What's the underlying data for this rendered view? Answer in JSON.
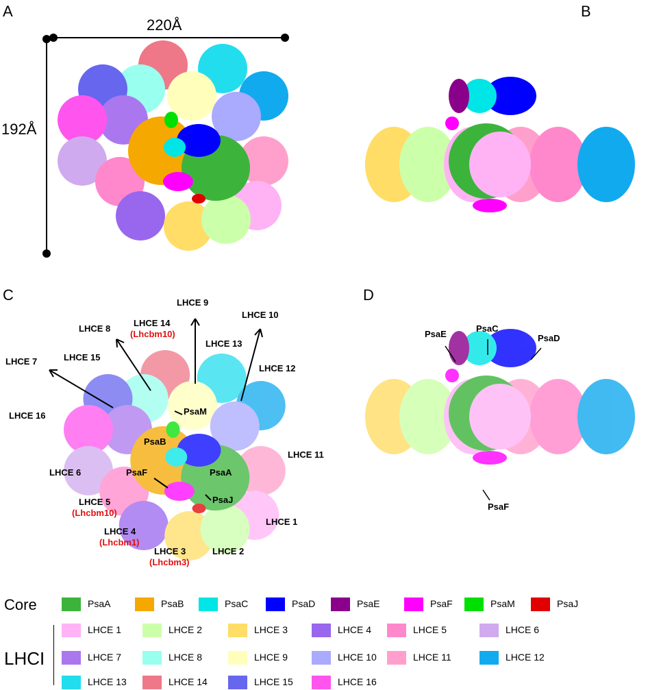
{
  "panels": {
    "a": "A",
    "b": "B",
    "c": "C",
    "d": "D"
  },
  "dimensions": {
    "width": "220Å",
    "height": "192Å"
  },
  "panel_c_labels": {
    "lhce9": "LHCE 9",
    "lhce10": "LHCE 10",
    "lhce14": "LHCE 14",
    "lhce14_sub": "(Lhcbm10)",
    "lhce8": "LHCE 8",
    "lhce13": "LHCE 13",
    "lhce7": "LHCE 7",
    "lhce15": "LHCE 15",
    "lhce12": "LHCE 12",
    "lhce16": "LHCE 16",
    "psam": "PsaM",
    "psab": "PsaB",
    "lhce11": "LHCE 11",
    "lhce6": "LHCE 6",
    "psaf": "PsaF",
    "psaa": "PsaA",
    "psaj": "PsaJ",
    "lhce5": "LHCE 5",
    "lhce5_sub": "(Lhcbm10)",
    "lhce1": "LHCE 1",
    "lhce4": "LHCE 4",
    "lhce4_sub": "(Lhcbm1)",
    "lhce3": "LHCE 3",
    "lhce3_sub": "(Lhcbm3)",
    "lhce2": "LHCE 2"
  },
  "panel_d_labels": {
    "psae": "PsaE",
    "psac": "PsaC",
    "psad": "PsaD",
    "psaf": "PsaF"
  },
  "legend": {
    "core_title": "Core",
    "core": [
      {
        "label": "PsaA",
        "color": "#3cb43c"
      },
      {
        "label": "PsaB",
        "color": "#f5a800"
      },
      {
        "label": "PsaC",
        "color": "#00e5e5"
      },
      {
        "label": "PsaD",
        "color": "#0000ff"
      },
      {
        "label": "PsaE",
        "color": "#8b008b"
      },
      {
        "label": "PsaF",
        "color": "#ff00ff"
      },
      {
        "label": "PsaM",
        "color": "#00e000"
      },
      {
        "label": "PsaJ",
        "color": "#e00000"
      }
    ],
    "lhci_title": "LHCI",
    "lhci": [
      {
        "label": "LHCE 1",
        "color": "#ffb3f5"
      },
      {
        "label": "LHCE 2",
        "color": "#ccffaa"
      },
      {
        "label": "LHCE 3",
        "color": "#ffdd66"
      },
      {
        "label": "LHCE 4",
        "color": "#9966ee"
      },
      {
        "label": "LHCE 5",
        "color": "#ff88cc"
      },
      {
        "label": "LHCE 6",
        "color": "#d0aaee"
      },
      {
        "label": "LHCE 7",
        "color": "#aa77ee"
      },
      {
        "label": "LHCE 8",
        "color": "#99ffee"
      },
      {
        "label": "LHCE 9",
        "color": "#ffffbb"
      },
      {
        "label": "LHCE 10",
        "color": "#aaaaff"
      },
      {
        "label": "LHCE 11",
        "color": "#ffa0cc"
      },
      {
        "label": "LHCE 12",
        "color": "#11aaee"
      },
      {
        "label": "LHCE 13",
        "color": "#22ddee"
      },
      {
        "label": "LHCE 14",
        "color": "#ee7788"
      },
      {
        "label": "LHCE 15",
        "color": "#6666ee"
      },
      {
        "label": "LHCE 16",
        "color": "#ff55ee"
      }
    ]
  }
}
